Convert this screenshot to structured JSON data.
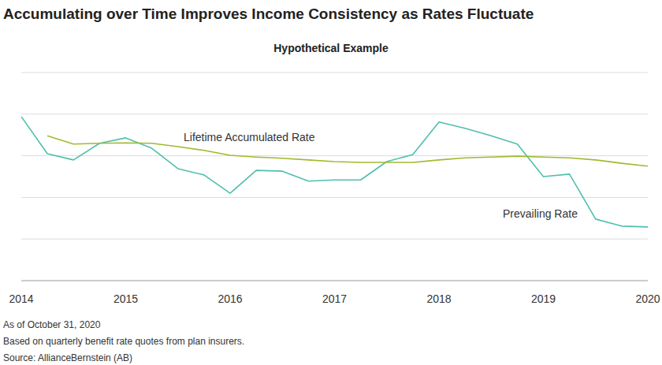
{
  "chart_data": {
    "type": "line",
    "title": "Accumulating over Time Improves Income Consistency as Rates Fluctuate",
    "subtitle": "Hypothetical Example",
    "annotations": [
      "As of October 31, 2020",
      "Based on quarterly benefit rate quotes from plan insurers.",
      "Source: AllianceBernstein (AB)"
    ],
    "x": [
      2014,
      2014.25,
      2014.5,
      2014.75,
      2015,
      2015.25,
      2015.5,
      2015.75,
      2016,
      2016.25,
      2016.5,
      2016.75,
      2017,
      2017.25,
      2017.5,
      2017.75,
      2018,
      2018.25,
      2018.5,
      2018.75,
      2019,
      2019.25,
      2019.5,
      2019.75,
      2020
    ],
    "xlim": [
      2014,
      2020
    ],
    "xticks": [
      2014,
      2015,
      2016,
      2017,
      2018,
      2019,
      2020
    ],
    "ylim": [
      0,
      5
    ],
    "yticks": [
      0,
      1,
      2,
      3,
      4,
      5
    ],
    "grid": true,
    "tick_labels": "x",
    "series": [
      {
        "name": "Prevailing Rate",
        "color": "#4fbfae",
        "values": [
          3.94,
          3.05,
          2.9,
          3.3,
          3.43,
          3.18,
          2.69,
          2.54,
          2.1,
          2.65,
          2.63,
          2.39,
          2.42,
          2.42,
          2.86,
          3.03,
          3.81,
          3.66,
          3.48,
          3.28,
          2.5,
          2.56,
          1.48,
          1.31,
          1.29
        ]
      },
      {
        "name": "Lifetime Accumulated Rate",
        "color": "#a3b92d",
        "values": [
          null,
          3.48,
          3.28,
          3.3,
          3.31,
          3.3,
          3.22,
          3.13,
          3.01,
          2.97,
          2.94,
          2.9,
          2.86,
          2.84,
          2.84,
          2.84,
          2.9,
          2.95,
          2.97,
          2.99,
          2.97,
          2.95,
          2.9,
          2.82,
          2.75
        ]
      }
    ]
  }
}
